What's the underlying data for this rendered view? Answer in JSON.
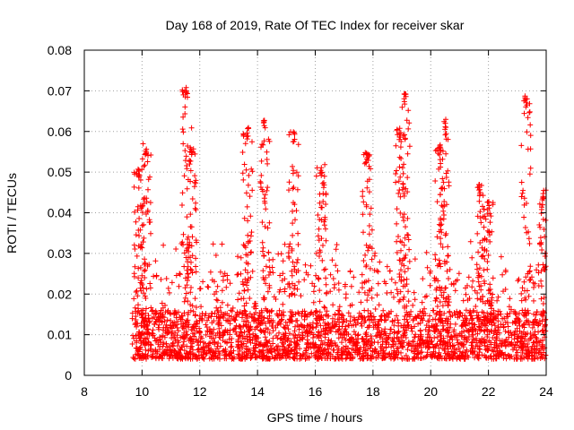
{
  "chart_data": {
    "type": "scatter",
    "title": "Day 168 of 2019, Rate Of TEC Index for receiver skar",
    "xlabel": "GPS time / hours",
    "ylabel": "ROTI / TECUs",
    "xlim": [
      8,
      24
    ],
    "ylim": [
      0,
      0.08
    ],
    "x_ticks": [
      "8",
      "10",
      "12",
      "14",
      "16",
      "18",
      "20",
      "22",
      "24"
    ],
    "y_ticks": [
      "0",
      "0.01",
      "0.02",
      "0.03",
      "0.04",
      "0.05",
      "0.06",
      "0.07",
      "0.08"
    ],
    "grid": true,
    "marker": "+",
    "color": "#ff0000",
    "time_range_hours": [
      9.65,
      24.0
    ],
    "baseline_range": [
      0.004,
      0.02
    ],
    "spikes": [
      {
        "x": 9.9,
        "peak": 0.051
      },
      {
        "x": 10.15,
        "peak": 0.057
      },
      {
        "x": 11.55,
        "peak": 0.071
      },
      {
        "x": 11.7,
        "peak": 0.057
      },
      {
        "x": 13.65,
        "peak": 0.061
      },
      {
        "x": 14.25,
        "peak": 0.063
      },
      {
        "x": 15.25,
        "peak": 0.06
      },
      {
        "x": 16.2,
        "peak": 0.052
      },
      {
        "x": 17.8,
        "peak": 0.055
      },
      {
        "x": 18.95,
        "peak": 0.061
      },
      {
        "x": 19.1,
        "peak": 0.07
      },
      {
        "x": 20.3,
        "peak": 0.057
      },
      {
        "x": 20.5,
        "peak": 0.063
      },
      {
        "x": 21.7,
        "peak": 0.047
      },
      {
        "x": 22.0,
        "peak": 0.043
      },
      {
        "x": 23.3,
        "peak": 0.069
      },
      {
        "x": 23.9,
        "peak": 0.046
      }
    ]
  }
}
